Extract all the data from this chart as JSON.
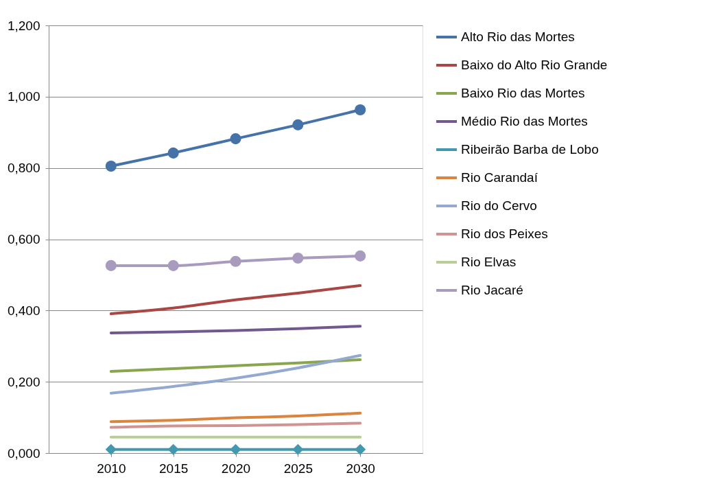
{
  "chart_data": {
    "type": "line",
    "categories": [
      "2010",
      "2015",
      "2020",
      "2025",
      "2030"
    ],
    "ylim": [
      0,
      1.2
    ],
    "yticks": [
      {
        "value": 0,
        "label": "0,000"
      },
      {
        "value": 0.2,
        "label": "0,200"
      },
      {
        "value": 0.4,
        "label": "0,400"
      },
      {
        "value": 0.6,
        "label": "0,600"
      },
      {
        "value": 0.8,
        "label": "0,800"
      },
      {
        "value": 1.0,
        "label": "1,000"
      },
      {
        "value": 1.2,
        "label": "1,200"
      }
    ],
    "grid": "y",
    "legend": "right",
    "series": [
      {
        "name": "Alto Rio das Mortes",
        "color": "#4572a7",
        "marker": "circle",
        "values": [
          0.805,
          0.842,
          0.882,
          0.921,
          0.963
        ]
      },
      {
        "name": "Baixo do Alto Rio Grande",
        "color": "#aa4643",
        "values": [
          0.391,
          0.407,
          0.43,
          0.449,
          0.47
        ]
      },
      {
        "name": "Baixo Rio das Mortes",
        "color": "#89a54e",
        "values": [
          0.229,
          0.237,
          0.245,
          0.253,
          0.262
        ]
      },
      {
        "name": "Médio Rio das Mortes",
        "color": "#71588f",
        "values": [
          0.337,
          0.34,
          0.344,
          0.349,
          0.356
        ]
      },
      {
        "name": "Ribeirão Barba de Lobo",
        "color": "#4198af",
        "marker": "diamond",
        "values": [
          0.01,
          0.01,
          0.01,
          0.01,
          0.01
        ]
      },
      {
        "name": "Rio Carandaí",
        "color": "#db843d",
        "values": [
          0.088,
          0.092,
          0.099,
          0.104,
          0.112
        ]
      },
      {
        "name": "Rio do Cervo",
        "color": "#93a9cf",
        "values": [
          0.168,
          0.187,
          0.21,
          0.239,
          0.274
        ]
      },
      {
        "name": "Rio dos Peixes",
        "color": "#d19392",
        "values": [
          0.072,
          0.076,
          0.077,
          0.08,
          0.084
        ]
      },
      {
        "name": "Rio Elvas",
        "color": "#b9cd96",
        "values": [
          0.045,
          0.045,
          0.045,
          0.045,
          0.045
        ]
      },
      {
        "name": "Rio Jacaré",
        "color": "#a99bbd",
        "marker": "circle",
        "values": [
          0.526,
          0.526,
          0.538,
          0.547,
          0.553
        ]
      }
    ]
  }
}
